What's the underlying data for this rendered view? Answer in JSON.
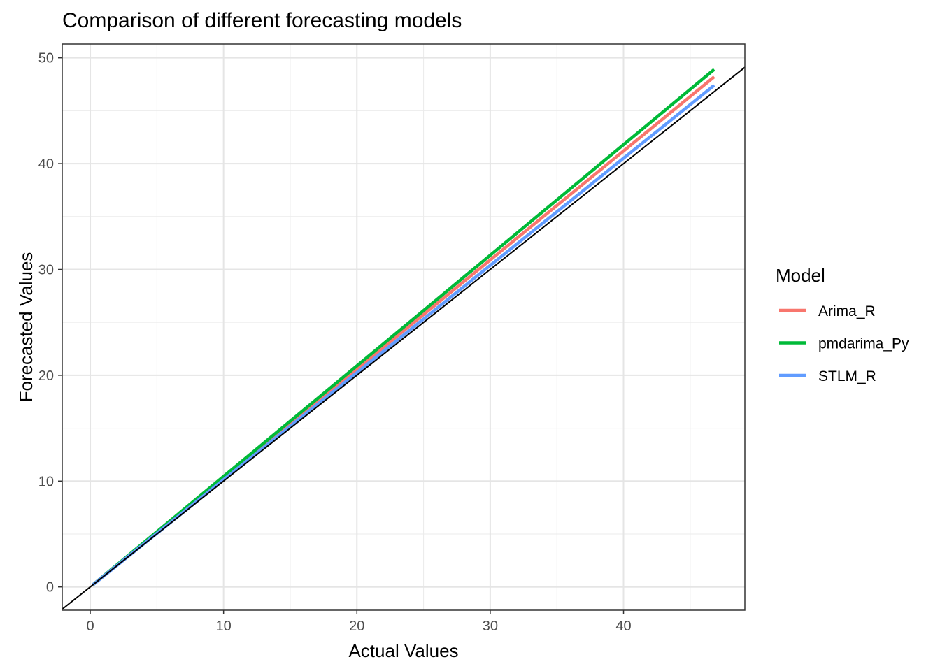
{
  "chart_data": {
    "type": "line",
    "title": "Comparison of different forecasting models",
    "xlabel": "Actual Values",
    "ylabel": "Forecasted Values",
    "xlim": [
      -2.1,
      49.1
    ],
    "ylim": [
      -2.2,
      51.3
    ],
    "x_ticks": [
      0,
      10,
      20,
      30,
      40
    ],
    "x_minor": [
      5,
      15,
      25,
      35,
      45
    ],
    "y_ticks": [
      0,
      10,
      20,
      30,
      40,
      50
    ],
    "y_minor": [
      5,
      15,
      25,
      35,
      45
    ],
    "grid": true,
    "reference_line": {
      "slope": 1,
      "intercept": 0,
      "color": "#000000"
    },
    "legend": {
      "title": "Model",
      "position": "right"
    },
    "series": [
      {
        "name": "Arima_R",
        "color": "#F8766D",
        "x": [
          0.2,
          46.8
        ],
        "y": [
          0.2,
          48.2
        ]
      },
      {
        "name": "pmdarima_Py",
        "color": "#00BA38",
        "x": [
          0.2,
          46.8
        ],
        "y": [
          0.2,
          48.9
        ]
      },
      {
        "name": "STLM_R",
        "color": "#619CFF",
        "x": [
          0.2,
          46.8
        ],
        "y": [
          0.2,
          47.4
        ]
      }
    ]
  }
}
